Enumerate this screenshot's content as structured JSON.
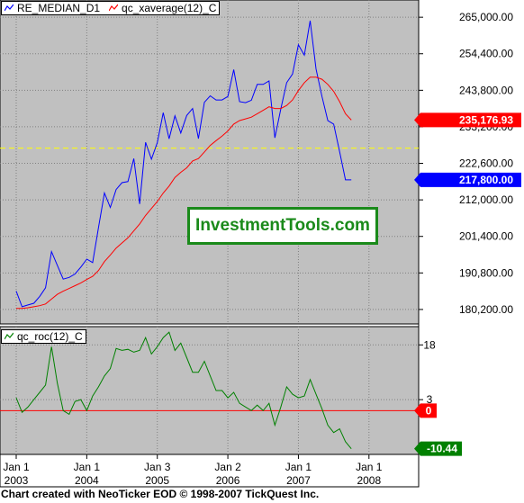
{
  "colors": {
    "panel_bg": "#c0c0c0",
    "median": "#0000ff",
    "average": "#ff0000",
    "roc": "#008000",
    "zero_line": "#ff0000",
    "mid_line": "#ffff00",
    "grid": "#808080"
  },
  "chart_data": [
    {
      "type": "line",
      "legend": [
        "RE_MEDIAN_D1",
        "qc_xaverage(12)_C"
      ],
      "ylim": [
        176000,
        270000
      ],
      "yticks": [
        {
          "value": 265000,
          "label": "265,000.00"
        },
        {
          "value": 254400,
          "label": "254,400.00"
        },
        {
          "value": 243800,
          "label": "243,800.00"
        },
        {
          "value": 233200,
          "label": "233,200.00"
        },
        {
          "value": 222600,
          "label": "222,600.00"
        },
        {
          "value": 212000,
          "label": "212,000.00"
        },
        {
          "value": 201400,
          "label": "201,400.00"
        },
        {
          "value": 190800,
          "label": "190,800.00"
        },
        {
          "value": 180200,
          "label": "180,200.00"
        }
      ],
      "reference_line": 227000,
      "series": [
        {
          "name": "RE_MEDIAN_D1",
          "last_label": "217,800.00",
          "values": [
            185500,
            181000,
            181500,
            182000,
            184000,
            186500,
            197000,
            193000,
            189000,
            189500,
            190500,
            192500,
            194800,
            193800,
            204000,
            214000,
            209800,
            215000,
            217000,
            217300,
            224000,
            210800,
            228700,
            223800,
            228600,
            237300,
            229700,
            236400,
            231400,
            236500,
            238500,
            229800,
            240300,
            242200,
            241000,
            241000,
            242000,
            249800,
            240500,
            240200,
            240900,
            245500,
            245500,
            246500,
            230000,
            238400,
            246000,
            248500,
            257000,
            254000,
            264000,
            250000,
            242000,
            235000,
            234000,
            226000,
            217800,
            217800
          ]
        },
        {
          "name": "qc_xaverage(12)_C",
          "last_label": "235,176.93",
          "values": [
            180500,
            180500,
            180700,
            181000,
            181300,
            181800,
            183200,
            184600,
            185500,
            186300,
            187100,
            187900,
            188900,
            189800,
            191500,
            194100,
            196000,
            198000,
            199500,
            201000,
            203000,
            205000,
            207500,
            209500,
            211500,
            214000,
            216000,
            218500,
            220000,
            221300,
            223300,
            224000,
            225900,
            227800,
            229200,
            230500,
            232000,
            234000,
            235000,
            235500,
            236000,
            237000,
            238000,
            239000,
            238500,
            238500,
            239400,
            241000,
            243700,
            246000,
            247600,
            247600,
            247000,
            245500,
            243500,
            240500,
            237000,
            235177
          ]
        }
      ]
    },
    {
      "type": "line",
      "legend": [
        "qc_roc(12)_C"
      ],
      "ylim": [
        -12,
        23
      ],
      "yticks": [
        {
          "value": 18,
          "label": "18"
        },
        {
          "value": 3,
          "label": "3"
        },
        {
          "value": 0,
          "label": "0"
        }
      ],
      "reference_line": 0,
      "series": [
        {
          "name": "qc_roc(12)_C",
          "last_label": "-10.44",
          "values": [
            3.5,
            -0.5,
            1,
            3,
            5,
            7,
            17.5,
            7.5,
            0,
            -1,
            2.5,
            3,
            0,
            4,
            6.5,
            9.5,
            11.5,
            17,
            16.5,
            16.8,
            16,
            16.5,
            20,
            15.5,
            17.5,
            20,
            21.5,
            16.5,
            18.5,
            14.5,
            10.5,
            10.5,
            13.5,
            9.5,
            5.5,
            5.5,
            3.5,
            5,
            2,
            1,
            0,
            1.5,
            0,
            2,
            -4,
            1,
            6.5,
            4.5,
            3.5,
            4,
            8.5,
            4.5,
            0.5,
            -4,
            -6,
            -5,
            -8.5,
            -10.44
          ]
        }
      ]
    }
  ],
  "xaxis": {
    "start_month": "2003-01",
    "ticks": [
      {
        "date": "2003-01",
        "label": "Jan 1",
        "year": "2003"
      },
      {
        "date": "2004-01",
        "label": "Jan 1",
        "year": "2004"
      },
      {
        "date": "2005-01",
        "label": "Jan 3",
        "year": "2005"
      },
      {
        "date": "2006-01",
        "label": "Jan 2",
        "year": "2006"
      },
      {
        "date": "2007-01",
        "label": "Jan 1",
        "year": "2007"
      },
      {
        "date": "2008-01",
        "label": "Jan 1",
        "year": "2008"
      }
    ]
  },
  "watermark": "InvestmentTools.com",
  "footer": "Chart created with NeoTicker EOD © 1998-2007 TickQuest Inc."
}
